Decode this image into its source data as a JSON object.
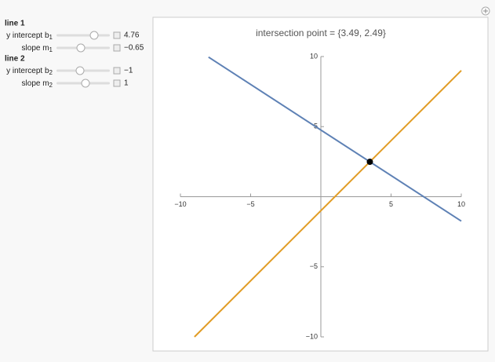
{
  "panel": {
    "sections": [
      {
        "title": "line 1",
        "controls": [
          {
            "label": "y intercept b",
            "subscript": "1",
            "value": 4.76
          },
          {
            "label": "slope m",
            "subscript": "1",
            "value": -0.65,
            "value_label": "−0.65"
          }
        ]
      },
      {
        "title": "line 2",
        "controls": [
          {
            "label": "y intercept b",
            "subscript": "2",
            "value": -1,
            "value_label": "−1"
          },
          {
            "label": "slope m",
            "subscript": "2",
            "value": 1
          }
        ]
      }
    ]
  },
  "chart_data": {
    "type": "line",
    "title": "intersection point = {3.49, 2.49}",
    "xlim": [
      -10,
      10
    ],
    "ylim": [
      -10,
      10
    ],
    "xticks": [
      {
        "value": -10,
        "label": "−10"
      },
      {
        "value": -5,
        "label": "−5"
      },
      5,
      10
    ],
    "yticks": [
      {
        "value": -10,
        "label": "−10"
      },
      {
        "value": -5,
        "label": "−5"
      },
      5,
      10
    ],
    "series": [
      {
        "x": [
          -8,
          10
        ],
        "values": [
          9.96,
          -1.74
        ],
        "color": "#5e81b5"
      },
      {
        "x": [
          -9,
          10
        ],
        "values": [
          -10,
          9
        ],
        "color": "#e19c24"
      }
    ],
    "points": [
      {
        "x": 3.49,
        "y": 2.49,
        "color": "#000000"
      }
    ]
  }
}
